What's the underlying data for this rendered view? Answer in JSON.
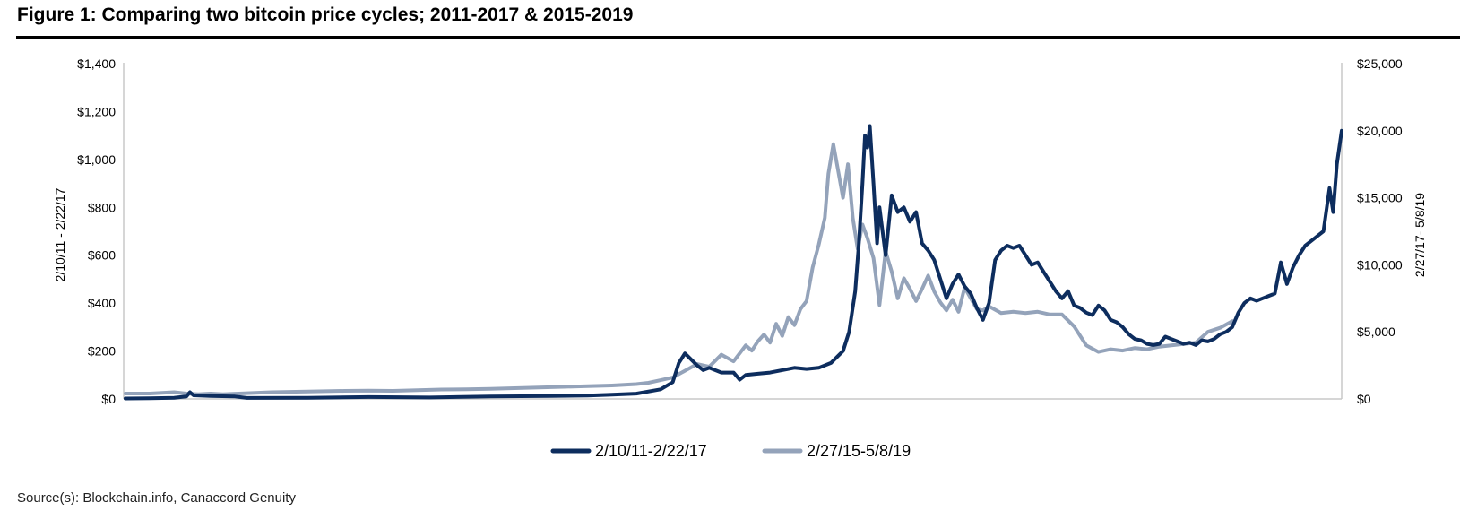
{
  "figure": {
    "title": "Figure 1: Comparing two bitcoin price cycles; 2011-2017 & 2015-2019",
    "source": "Source(s): Blockchain.info, Canaccord Genuity"
  },
  "colors": {
    "dark": "#0d2d5e",
    "light": "#94a3ba"
  },
  "chart_data": {
    "type": "line",
    "title": "Figure 1: Comparing two bitcoin price cycles; 2011-2017 & 2015-2019",
    "legend_position": "bottom-center",
    "grid": false,
    "left_axis": {
      "label": "2/10/11 - 2/22/17",
      "ylim": [
        0,
        1400
      ],
      "ticks": [
        0,
        200,
        400,
        600,
        800,
        1000,
        1200,
        1400
      ],
      "tick_labels": [
        "$0",
        "$200",
        "$400",
        "$600",
        "$800",
        "$1,000",
        "$1,200",
        "$1,400"
      ]
    },
    "right_axis": {
      "label": "2/27/17- 5/8/19",
      "ylim": [
        0,
        25000
      ],
      "ticks": [
        0,
        5000,
        10000,
        15000,
        20000,
        25000
      ],
      "tick_labels": [
        "$0",
        "$5,000",
        "$10,000",
        "$15,000",
        "$20,000",
        "$25,000"
      ]
    },
    "x_progress_range": [
      0,
      1
    ],
    "series": [
      {
        "name": "2/10/11-2/22/17",
        "axis": "left",
        "color": "#0d2d5e",
        "points": [
          [
            0,
            2
          ],
          [
            0.02,
            3
          ],
          [
            0.04,
            5
          ],
          [
            0.05,
            10
          ],
          [
            0.053,
            28
          ],
          [
            0.056,
            15
          ],
          [
            0.07,
            12
          ],
          [
            0.09,
            10
          ],
          [
            0.1,
            4
          ],
          [
            0.15,
            5
          ],
          [
            0.2,
            8
          ],
          [
            0.25,
            6
          ],
          [
            0.3,
            10
          ],
          [
            0.35,
            12
          ],
          [
            0.38,
            14
          ],
          [
            0.4,
            18
          ],
          [
            0.42,
            22
          ],
          [
            0.44,
            40
          ],
          [
            0.45,
            70
          ],
          [
            0.455,
            150
          ],
          [
            0.46,
            190
          ],
          [
            0.47,
            140
          ],
          [
            0.475,
            120
          ],
          [
            0.48,
            130
          ],
          [
            0.49,
            110
          ],
          [
            0.5,
            110
          ],
          [
            0.505,
            80
          ],
          [
            0.51,
            100
          ],
          [
            0.52,
            105
          ],
          [
            0.53,
            110
          ],
          [
            0.54,
            120
          ],
          [
            0.55,
            130
          ],
          [
            0.56,
            125
          ],
          [
            0.57,
            130
          ],
          [
            0.58,
            150
          ],
          [
            0.59,
            200
          ],
          [
            0.595,
            280
          ],
          [
            0.6,
            450
          ],
          [
            0.603,
            650
          ],
          [
            0.606,
            900
          ],
          [
            0.608,
            1100
          ],
          [
            0.61,
            1050
          ],
          [
            0.612,
            1140
          ],
          [
            0.615,
            900
          ],
          [
            0.618,
            650
          ],
          [
            0.62,
            800
          ],
          [
            0.625,
            600
          ],
          [
            0.63,
            850
          ],
          [
            0.635,
            780
          ],
          [
            0.64,
            800
          ],
          [
            0.645,
            740
          ],
          [
            0.65,
            780
          ],
          [
            0.655,
            650
          ],
          [
            0.66,
            620
          ],
          [
            0.665,
            580
          ],
          [
            0.67,
            500
          ],
          [
            0.675,
            420
          ],
          [
            0.68,
            480
          ],
          [
            0.685,
            520
          ],
          [
            0.69,
            470
          ],
          [
            0.695,
            440
          ],
          [
            0.7,
            380
          ],
          [
            0.705,
            330
          ],
          [
            0.71,
            400
          ],
          [
            0.715,
            580
          ],
          [
            0.72,
            620
          ],
          [
            0.725,
            640
          ],
          [
            0.73,
            630
          ],
          [
            0.735,
            640
          ],
          [
            0.74,
            600
          ],
          [
            0.745,
            560
          ],
          [
            0.75,
            570
          ],
          [
            0.755,
            530
          ],
          [
            0.76,
            490
          ],
          [
            0.765,
            450
          ],
          [
            0.77,
            420
          ],
          [
            0.775,
            450
          ],
          [
            0.78,
            390
          ],
          [
            0.785,
            380
          ],
          [
            0.79,
            360
          ],
          [
            0.795,
            350
          ],
          [
            0.8,
            390
          ],
          [
            0.805,
            370
          ],
          [
            0.81,
            330
          ],
          [
            0.815,
            320
          ],
          [
            0.82,
            300
          ],
          [
            0.825,
            270
          ],
          [
            0.83,
            250
          ],
          [
            0.835,
            245
          ],
          [
            0.84,
            230
          ],
          [
            0.845,
            225
          ],
          [
            0.85,
            230
          ],
          [
            0.855,
            260
          ],
          [
            0.86,
            250
          ],
          [
            0.865,
            240
          ],
          [
            0.87,
            230
          ],
          [
            0.875,
            235
          ],
          [
            0.88,
            225
          ],
          [
            0.885,
            245
          ],
          [
            0.89,
            240
          ],
          [
            0.895,
            250
          ],
          [
            0.9,
            270
          ],
          [
            0.905,
            280
          ],
          [
            0.91,
            300
          ],
          [
            0.915,
            360
          ],
          [
            0.92,
            400
          ],
          [
            0.925,
            420
          ],
          [
            0.93,
            410
          ],
          [
            0.935,
            420
          ],
          [
            0.94,
            430
          ],
          [
            0.945,
            440
          ],
          [
            0.95,
            570
          ],
          [
            0.955,
            480
          ],
          [
            0.96,
            550
          ],
          [
            0.965,
            600
          ],
          [
            0.97,
            640
          ],
          [
            0.975,
            660
          ],
          [
            0.98,
            680
          ],
          [
            0.985,
            700
          ],
          [
            0.99,
            880
          ],
          [
            0.993,
            780
          ],
          [
            0.996,
            980
          ],
          [
            1.0,
            1120
          ]
        ]
      },
      {
        "name": "2/27/15-5/8/19",
        "axis": "right",
        "color": "#94a3ba",
        "points": [
          [
            0,
            400
          ],
          [
            0.02,
            400
          ],
          [
            0.04,
            500
          ],
          [
            0.05,
            400
          ],
          [
            0.06,
            350
          ],
          [
            0.07,
            400
          ],
          [
            0.08,
            350
          ],
          [
            0.1,
            430
          ],
          [
            0.12,
            500
          ],
          [
            0.15,
            550
          ],
          [
            0.18,
            600
          ],
          [
            0.2,
            620
          ],
          [
            0.22,
            600
          ],
          [
            0.24,
            650
          ],
          [
            0.26,
            700
          ],
          [
            0.28,
            720
          ],
          [
            0.3,
            750
          ],
          [
            0.32,
            800
          ],
          [
            0.34,
            850
          ],
          [
            0.36,
            900
          ],
          [
            0.38,
            950
          ],
          [
            0.4,
            1000
          ],
          [
            0.41,
            1050
          ],
          [
            0.42,
            1100
          ],
          [
            0.43,
            1200
          ],
          [
            0.44,
            1400
          ],
          [
            0.45,
            1600
          ],
          [
            0.46,
            2100
          ],
          [
            0.47,
            2600
          ],
          [
            0.48,
            2400
          ],
          [
            0.49,
            3300
          ],
          [
            0.5,
            2800
          ],
          [
            0.51,
            4000
          ],
          [
            0.515,
            3600
          ],
          [
            0.52,
            4300
          ],
          [
            0.525,
            4800
          ],
          [
            0.53,
            4200
          ],
          [
            0.535,
            5600
          ],
          [
            0.54,
            4700
          ],
          [
            0.545,
            6100
          ],
          [
            0.55,
            5500
          ],
          [
            0.555,
            6700
          ],
          [
            0.56,
            7300
          ],
          [
            0.565,
            9800
          ],
          [
            0.57,
            11500
          ],
          [
            0.575,
            13500
          ],
          [
            0.578,
            16800
          ],
          [
            0.582,
            19000
          ],
          [
            0.586,
            17000
          ],
          [
            0.59,
            15000
          ],
          [
            0.594,
            17500
          ],
          [
            0.598,
            13500
          ],
          [
            0.602,
            11200
          ],
          [
            0.606,
            13000
          ],
          [
            0.61,
            12000
          ],
          [
            0.615,
            10500
          ],
          [
            0.62,
            7000
          ],
          [
            0.625,
            11000
          ],
          [
            0.63,
            9500
          ],
          [
            0.635,
            7500
          ],
          [
            0.64,
            9000
          ],
          [
            0.645,
            8200
          ],
          [
            0.65,
            7300
          ],
          [
            0.655,
            8200
          ],
          [
            0.66,
            9200
          ],
          [
            0.665,
            8000
          ],
          [
            0.67,
            7200
          ],
          [
            0.675,
            6600
          ],
          [
            0.68,
            7400
          ],
          [
            0.685,
            6500
          ],
          [
            0.69,
            8300
          ],
          [
            0.695,
            7500
          ],
          [
            0.7,
            6700
          ],
          [
            0.705,
            6600
          ],
          [
            0.71,
            6900
          ],
          [
            0.72,
            6400
          ],
          [
            0.73,
            6500
          ],
          [
            0.74,
            6400
          ],
          [
            0.75,
            6500
          ],
          [
            0.76,
            6300
          ],
          [
            0.77,
            6300
          ],
          [
            0.78,
            5400
          ],
          [
            0.79,
            4000
          ],
          [
            0.8,
            3500
          ],
          [
            0.81,
            3700
          ],
          [
            0.82,
            3600
          ],
          [
            0.83,
            3800
          ],
          [
            0.84,
            3700
          ],
          [
            0.85,
            3900
          ],
          [
            0.86,
            4000
          ],
          [
            0.87,
            4100
          ],
          [
            0.88,
            4200
          ],
          [
            0.89,
            5000
          ],
          [
            0.9,
            5300
          ],
          [
            0.91,
            5800
          ]
        ]
      }
    ]
  }
}
